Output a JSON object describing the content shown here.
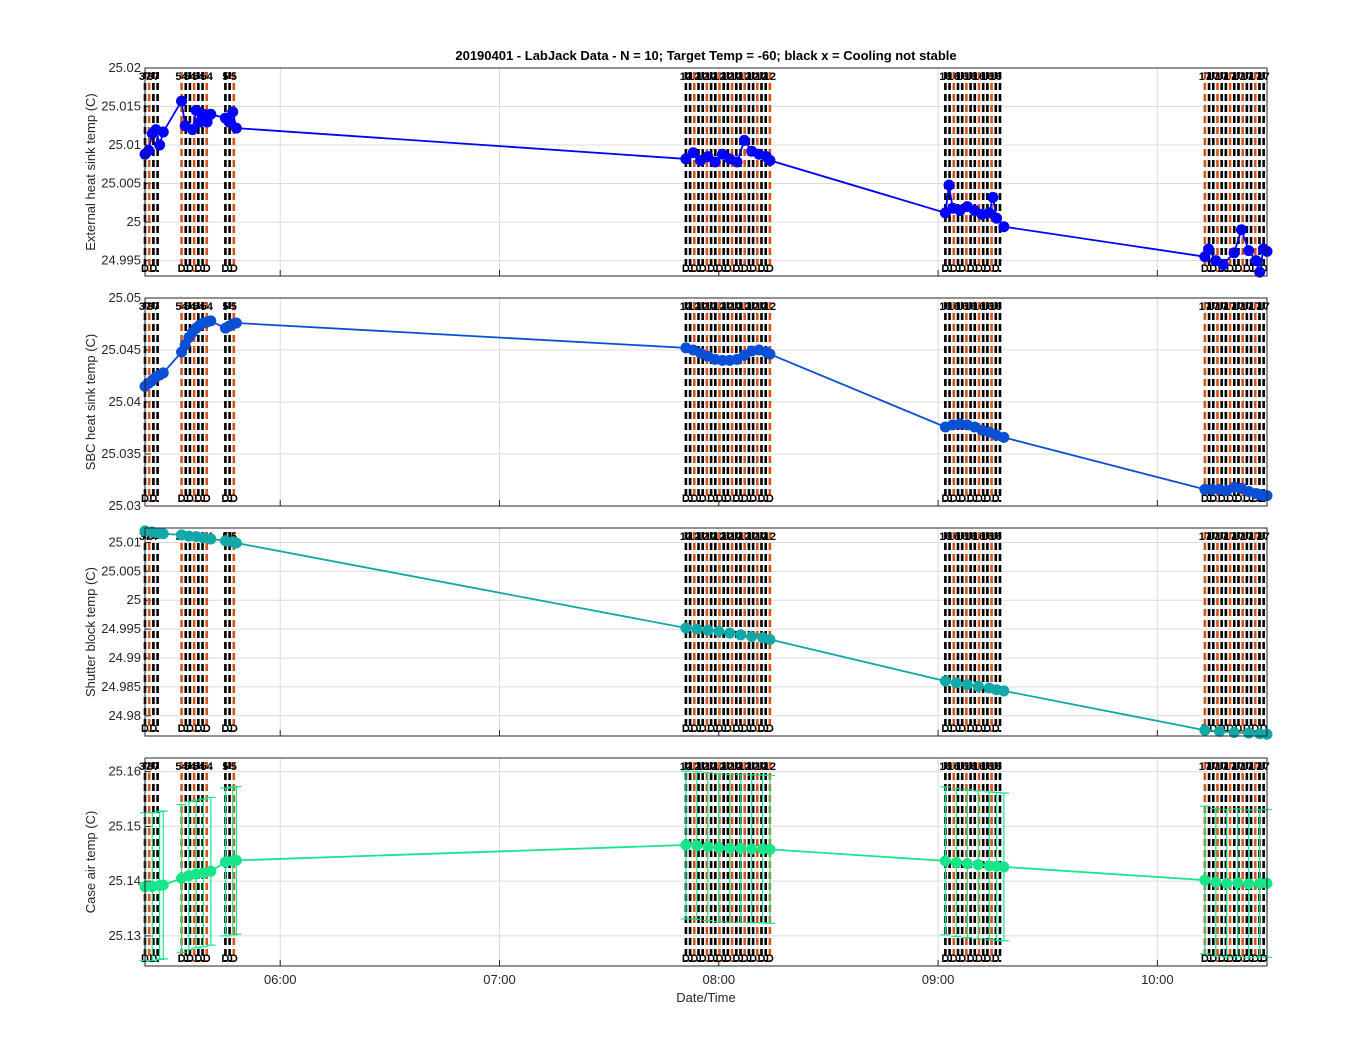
{
  "chart_data": {
    "type": "line",
    "title": "20190401 - LabJack Data - N = 10; Target Temp = -60; black x = Cooling not stable",
    "xlabel": "Date/Time",
    "xlim": [
      "05:23",
      "10:30"
    ],
    "xticks": [
      "06:00",
      "07:00",
      "08:00",
      "09:00",
      "10:00"
    ],
    "grid": true,
    "marker_label_top_sample": [
      "37",
      "54",
      "5",
      "12",
      "16",
      "17",
      "23",
      "28",
      "29",
      "40",
      "41",
      "48",
      "52"
    ],
    "marker_label_bottom": "D",
    "clusters": [
      {
        "start": "05:23",
        "end": "05:27"
      },
      {
        "start": "05:33",
        "end": "05:40"
      },
      {
        "start": "05:45",
        "end": "05:48"
      },
      {
        "start": "07:51",
        "end": "08:14"
      },
      {
        "start": "09:02",
        "end": "09:18"
      },
      {
        "start": "10:13",
        "end": "10:30"
      }
    ],
    "panels": [
      {
        "ylabel": "External heat sink temp (C)",
        "ylim": [
          24.993,
          25.02
        ],
        "yticks": [
          "24.995",
          "25",
          "25.005",
          "25.01",
          "25.015",
          "25.02"
        ],
        "color": "#0000ff",
        "has_error_bars": false,
        "series": [
          {
            "x": "05:23",
            "y": 25.0088
          },
          {
            "x": "05:24",
            "y": 25.0093
          },
          {
            "x": "05:25",
            "y": 25.0115
          },
          {
            "x": "05:26",
            "y": 25.012
          },
          {
            "x": "05:27",
            "y": 25.01
          },
          {
            "x": "05:28",
            "y": 25.0117
          },
          {
            "x": "05:33",
            "y": 25.0157
          },
          {
            "x": "05:34",
            "y": 25.0125
          },
          {
            "x": "05:36",
            "y": 25.012
          },
          {
            "x": "05:37",
            "y": 25.0145
          },
          {
            "x": "05:38",
            "y": 25.013
          },
          {
            "x": "05:39",
            "y": 25.014
          },
          {
            "x": "05:40",
            "y": 25.013
          },
          {
            "x": "05:41",
            "y": 25.014
          },
          {
            "x": "05:45",
            "y": 25.0135
          },
          {
            "x": "05:46",
            "y": 25.013
          },
          {
            "x": "05:47",
            "y": 25.0143
          },
          {
            "x": "05:48",
            "y": 25.0122
          },
          {
            "x": "07:51",
            "y": 25.0082
          },
          {
            "x": "07:53",
            "y": 25.009
          },
          {
            "x": "07:55",
            "y": 25.008
          },
          {
            "x": "07:57",
            "y": 25.0085
          },
          {
            "x": "07:59",
            "y": 25.0078
          },
          {
            "x": "08:01",
            "y": 25.0088
          },
          {
            "x": "08:03",
            "y": 25.0082
          },
          {
            "x": "08:05",
            "y": 25.0078
          },
          {
            "x": "08:07",
            "y": 25.0106
          },
          {
            "x": "08:09",
            "y": 25.0092
          },
          {
            "x": "08:11",
            "y": 25.0088
          },
          {
            "x": "08:13",
            "y": 25.0085
          },
          {
            "x": "08:14",
            "y": 25.008
          },
          {
            "x": "09:02",
            "y": 25.0012
          },
          {
            "x": "09:03",
            "y": 25.0048
          },
          {
            "x": "09:04",
            "y": 25.0018
          },
          {
            "x": "09:06",
            "y": 25.0015
          },
          {
            "x": "09:08",
            "y": 25.002
          },
          {
            "x": "09:10",
            "y": 25.0015
          },
          {
            "x": "09:12",
            "y": 25.001
          },
          {
            "x": "09:14",
            "y": 25.0012
          },
          {
            "x": "09:15",
            "y": 25.0032
          },
          {
            "x": "09:16",
            "y": 25.0005
          },
          {
            "x": "09:18",
            "y": 24.9994
          },
          {
            "x": "10:13",
            "y": 24.9955
          },
          {
            "x": "10:14",
            "y": 24.9965
          },
          {
            "x": "10:16",
            "y": 24.995
          },
          {
            "x": "10:18",
            "y": 24.9945
          },
          {
            "x": "10:21",
            "y": 24.996
          },
          {
            "x": "10:23",
            "y": 24.999
          },
          {
            "x": "10:25",
            "y": 24.9963
          },
          {
            "x": "10:27",
            "y": 24.995
          },
          {
            "x": "10:28",
            "y": 24.9935
          },
          {
            "x": "10:29",
            "y": 24.9965
          },
          {
            "x": "10:30",
            "y": 24.9962
          }
        ]
      },
      {
        "ylabel": "SBC heat sink temp (C)",
        "ylim": [
          25.03,
          25.05
        ],
        "yticks": [
          "25.03",
          "25.035",
          "25.04",
          "25.045",
          "25.05"
        ],
        "color": "#0a50d6",
        "has_error_bars": false,
        "series": [
          {
            "x": "05:23",
            "y": 25.0415
          },
          {
            "x": "05:24",
            "y": 25.0418
          },
          {
            "x": "05:25",
            "y": 25.0421
          },
          {
            "x": "05:26",
            "y": 25.0424
          },
          {
            "x": "05:27",
            "y": 25.0426
          },
          {
            "x": "05:28",
            "y": 25.0428
          },
          {
            "x": "05:33",
            "y": 25.0448
          },
          {
            "x": "05:34",
            "y": 25.0455
          },
          {
            "x": "05:35",
            "y": 25.0462
          },
          {
            "x": "05:36",
            "y": 25.0467
          },
          {
            "x": "05:37",
            "y": 25.0471
          },
          {
            "x": "05:38",
            "y": 25.0474
          },
          {
            "x": "05:39",
            "y": 25.0476
          },
          {
            "x": "05:40",
            "y": 25.0477
          },
          {
            "x": "05:41",
            "y": 25.0478
          },
          {
            "x": "05:45",
            "y": 25.0471
          },
          {
            "x": "05:46",
            "y": 25.0473
          },
          {
            "x": "05:47",
            "y": 25.0475
          },
          {
            "x": "05:48",
            "y": 25.0476
          },
          {
            "x": "07:51",
            "y": 25.0452
          },
          {
            "x": "07:53",
            "y": 25.045
          },
          {
            "x": "07:55",
            "y": 25.0447
          },
          {
            "x": "07:57",
            "y": 25.0444
          },
          {
            "x": "07:59",
            "y": 25.0441
          },
          {
            "x": "08:01",
            "y": 25.044
          },
          {
            "x": "08:03",
            "y": 25.044
          },
          {
            "x": "08:05",
            "y": 25.0441
          },
          {
            "x": "08:07",
            "y": 25.0445
          },
          {
            "x": "08:09",
            "y": 25.0449
          },
          {
            "x": "08:11",
            "y": 25.045
          },
          {
            "x": "08:13",
            "y": 25.0448
          },
          {
            "x": "08:14",
            "y": 25.0446
          },
          {
            "x": "09:02",
            "y": 25.0376
          },
          {
            "x": "09:04",
            "y": 25.0378
          },
          {
            "x": "09:06",
            "y": 25.0379
          },
          {
            "x": "09:08",
            "y": 25.0378
          },
          {
            "x": "09:10",
            "y": 25.0376
          },
          {
            "x": "09:12",
            "y": 25.0373
          },
          {
            "x": "09:14",
            "y": 25.0371
          },
          {
            "x": "09:16",
            "y": 25.0368
          },
          {
            "x": "09:18",
            "y": 25.0366
          },
          {
            "x": "10:13",
            "y": 25.0316
          },
          {
            "x": "10:15",
            "y": 25.0316
          },
          {
            "x": "10:17",
            "y": 25.0316
          },
          {
            "x": "10:19",
            "y": 25.0315
          },
          {
            "x": "10:21",
            "y": 25.0318
          },
          {
            "x": "10:23",
            "y": 25.0317
          },
          {
            "x": "10:25",
            "y": 25.0314
          },
          {
            "x": "10:27",
            "y": 25.0312
          },
          {
            "x": "10:28",
            "y": 25.0311
          },
          {
            "x": "10:29",
            "y": 25.031
          },
          {
            "x": "10:30",
            "y": 25.031
          }
        ]
      },
      {
        "ylabel": "Shutter block temp (C)",
        "ylim": [
          24.9765,
          25.0125
        ],
        "yticks": [
          "24.98",
          "24.985",
          "24.99",
          "24.995",
          "25",
          "25.005",
          "25.01"
        ],
        "color": "#10a8a8",
        "has_error_bars": false,
        "series": [
          {
            "x": "05:23",
            "y": 25.012
          },
          {
            "x": "05:25",
            "y": 25.0118
          },
          {
            "x": "05:27",
            "y": 25.0116
          },
          {
            "x": "05:28",
            "y": 25.0115
          },
          {
            "x": "05:33",
            "y": 25.0113
          },
          {
            "x": "05:35",
            "y": 25.0111
          },
          {
            "x": "05:37",
            "y": 25.011
          },
          {
            "x": "05:39",
            "y": 25.0108
          },
          {
            "x": "05:41",
            "y": 25.0106
          },
          {
            "x": "05:45",
            "y": 25.0103
          },
          {
            "x": "05:47",
            "y": 25.0101
          },
          {
            "x": "05:48",
            "y": 25.0099
          },
          {
            "x": "07:51",
            "y": 24.9952
          },
          {
            "x": "07:54",
            "y": 24.995
          },
          {
            "x": "07:57",
            "y": 24.9948
          },
          {
            "x": "08:00",
            "y": 24.9946
          },
          {
            "x": "08:03",
            "y": 24.9943
          },
          {
            "x": "08:06",
            "y": 24.994
          },
          {
            "x": "08:09",
            "y": 24.9937
          },
          {
            "x": "08:12",
            "y": 24.9935
          },
          {
            "x": "08:14",
            "y": 24.9932
          },
          {
            "x": "09:02",
            "y": 24.986
          },
          {
            "x": "09:05",
            "y": 24.9857
          },
          {
            "x": "09:08",
            "y": 24.9854
          },
          {
            "x": "09:11",
            "y": 24.9851
          },
          {
            "x": "09:14",
            "y": 24.9848
          },
          {
            "x": "09:16",
            "y": 24.9845
          },
          {
            "x": "09:18",
            "y": 24.9843
          },
          {
            "x": "10:13",
            "y": 24.9775
          },
          {
            "x": "10:17",
            "y": 24.9773
          },
          {
            "x": "10:21",
            "y": 24.9771
          },
          {
            "x": "10:25",
            "y": 24.977
          },
          {
            "x": "10:28",
            "y": 24.9769
          },
          {
            "x": "10:30",
            "y": 24.9768
          }
        ]
      },
      {
        "ylabel": "Case air temp (C)",
        "ylim": [
          25.1245,
          25.1625
        ],
        "yticks": [
          "25.13",
          "25.14",
          "25.15",
          "25.16"
        ],
        "color": "#17e58a",
        "has_error_bars": true,
        "error_half_width": 0.0135,
        "series": [
          {
            "x": "05:23",
            "y": 25.139
          },
          {
            "x": "05:25",
            "y": 25.139
          },
          {
            "x": "05:27",
            "y": 25.1392
          },
          {
            "x": "05:28",
            "y": 25.1393
          },
          {
            "x": "05:33",
            "y": 25.1405
          },
          {
            "x": "05:35",
            "y": 25.141
          },
          {
            "x": "05:37",
            "y": 25.1413
          },
          {
            "x": "05:39",
            "y": 25.1415
          },
          {
            "x": "05:41",
            "y": 25.1418
          },
          {
            "x": "05:45",
            "y": 25.1435
          },
          {
            "x": "05:47",
            "y": 25.1437
          },
          {
            "x": "05:48",
            "y": 25.1438
          },
          {
            "x": "07:51",
            "y": 25.1466
          },
          {
            "x": "07:54",
            "y": 25.1465
          },
          {
            "x": "07:57",
            "y": 25.1463
          },
          {
            "x": "08:00",
            "y": 25.1461
          },
          {
            "x": "08:03",
            "y": 25.146
          },
          {
            "x": "08:06",
            "y": 25.146
          },
          {
            "x": "08:09",
            "y": 25.1459
          },
          {
            "x": "08:12",
            "y": 25.1459
          },
          {
            "x": "08:14",
            "y": 25.1458
          },
          {
            "x": "09:02",
            "y": 25.1437
          },
          {
            "x": "09:05",
            "y": 25.1434
          },
          {
            "x": "09:08",
            "y": 25.1432
          },
          {
            "x": "09:11",
            "y": 25.143
          },
          {
            "x": "09:14",
            "y": 25.1428
          },
          {
            "x": "09:16",
            "y": 25.1427
          },
          {
            "x": "09:18",
            "y": 25.1426
          },
          {
            "x": "10:13",
            "y": 25.1402
          },
          {
            "x": "10:16",
            "y": 25.1398
          },
          {
            "x": "10:19",
            "y": 25.1396
          },
          {
            "x": "10:22",
            "y": 25.1397
          },
          {
            "x": "10:25",
            "y": 25.1395
          },
          {
            "x": "10:28",
            "y": 25.1396
          },
          {
            "x": "10:30",
            "y": 25.1396
          }
        ]
      }
    ]
  },
  "colors": {
    "marker_line_black": "#000000",
    "marker_line_orange": "#d95319",
    "grid": "#dcdcdc",
    "axis": "#262626"
  }
}
